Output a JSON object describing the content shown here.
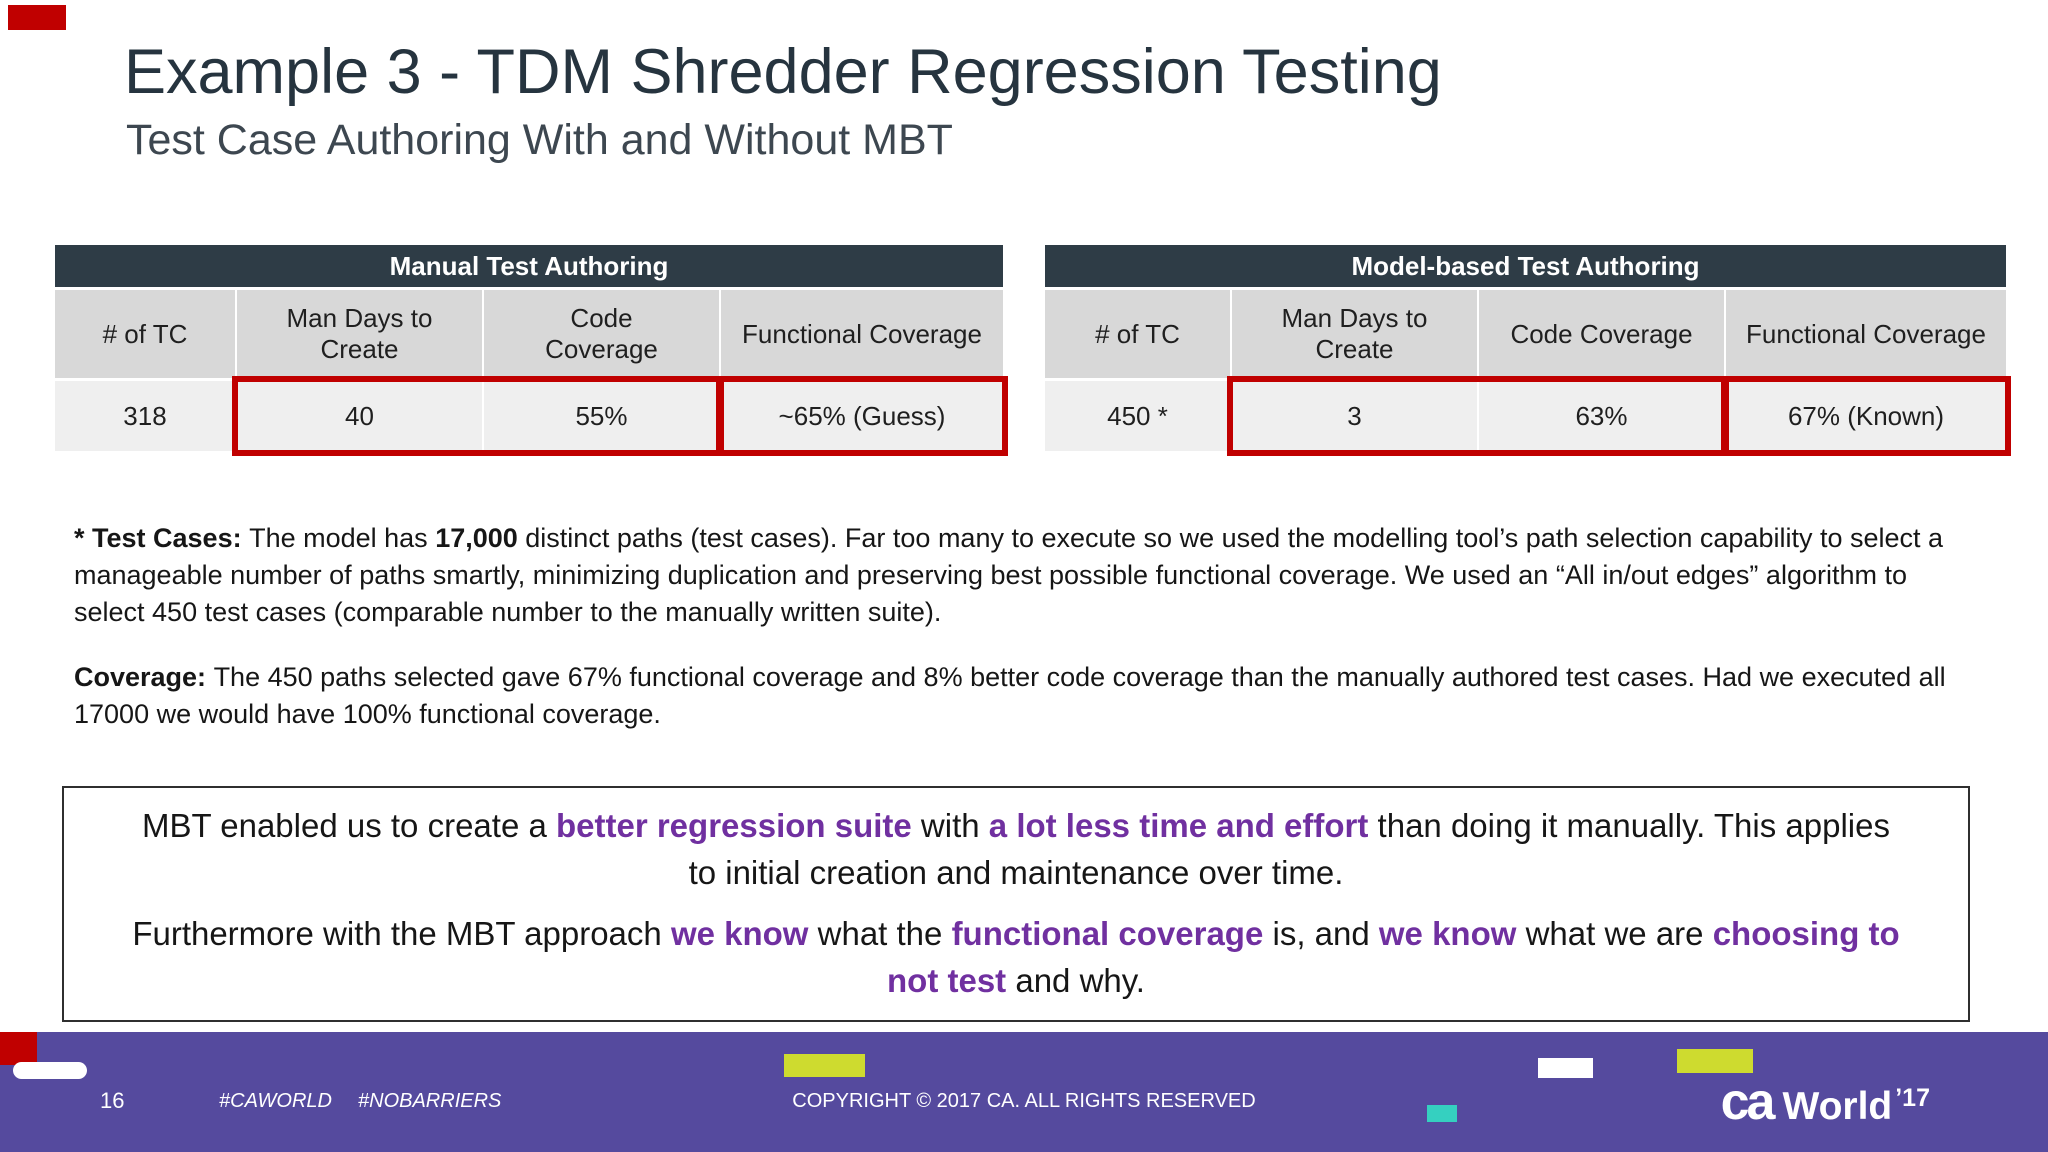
{
  "colors": {
    "table_header": "#2e3c46",
    "highlight_red": "#c00000",
    "accent_purple": "#7030a0",
    "footer_purple": "#554a9e",
    "accent_yellow": "#cedb2f",
    "accent_teal": "#35d0c0"
  },
  "slide": {
    "title": "Example 3 - TDM Shredder Regression Testing",
    "subtitle": "Test Case Authoring With and Without MBT"
  },
  "tables": [
    {
      "title": "Manual Test Authoring",
      "columns": [
        "# of TC",
        "Man Days to Create",
        "Code Coverage",
        "Functional Coverage"
      ],
      "row": [
        "318",
        "40",
        "55%",
        "~65% (Guess)"
      ]
    },
    {
      "title": "Model-based Test Authoring",
      "columns": [
        "# of TC",
        "Man Days to Create",
        "Code Coverage",
        "Functional Coverage"
      ],
      "row": [
        "450 *",
        "3",
        "63%",
        "67% (Known)"
      ]
    }
  ],
  "notes": {
    "p1": [
      {
        "t": "* Test Cases: ",
        "b": true
      },
      {
        "t": "The model has "
      },
      {
        "t": "17,000",
        "b": true
      },
      {
        "t": " distinct paths (test cases). Far too many to execute so we used the modelling tool’s path selection capability to select a manageable number of paths smartly, minimizing duplication and preserving best possible functional coverage. We used an “All in/out edges” algorithm to select 450 test cases (comparable number to the manually written suite)."
      }
    ],
    "p2": [
      {
        "t": "Coverage: ",
        "b": true
      },
      {
        "t": "The 450 paths selected gave 67% functional coverage and 8% better code coverage than the manually authored test cases. Had we executed all 17000 we would have 100% functional coverage."
      }
    ]
  },
  "callout": {
    "p1": [
      {
        "t": "MBT enabled us to create a "
      },
      {
        "t": "better regression suite",
        "p": true
      },
      {
        "t": " with "
      },
      {
        "t": "a lot less time and effort",
        "p": true
      },
      {
        "t": " than doing it manually. This applies to initial creation and maintenance over time."
      }
    ],
    "p2": [
      {
        "t": "Furthermore with the MBT approach "
      },
      {
        "t": "we know",
        "p": true
      },
      {
        "t": " what the "
      },
      {
        "t": "functional coverage",
        "p": true
      },
      {
        "t": " is, and "
      },
      {
        "t": "we know",
        "p": true
      },
      {
        "t": " what we are "
      },
      {
        "t": "choosing to not test",
        "p": true
      },
      {
        "t": " and why."
      }
    ]
  },
  "footer": {
    "page": "16",
    "hashtags": [
      "#CAWORLD",
      "#NOBARRIERS"
    ],
    "copyright": "COPYRIGHT © 2017 CA. ALL RIGHTS RESERVED",
    "logo": {
      "ca": "ca",
      "world": "World",
      "year": "’17"
    }
  }
}
